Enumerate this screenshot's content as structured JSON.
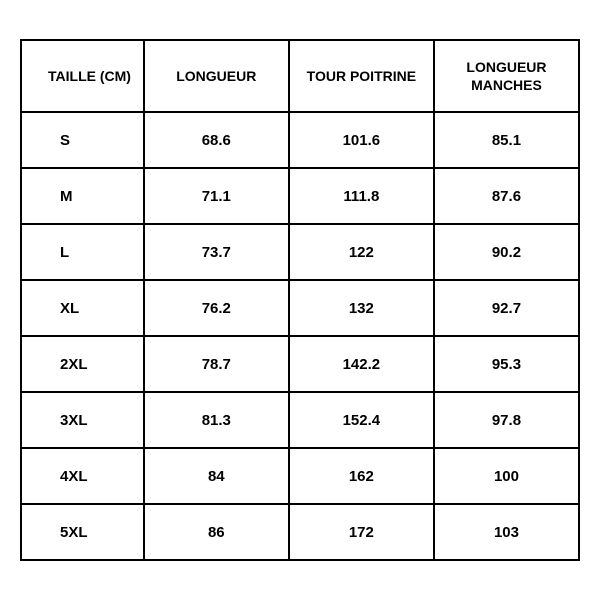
{
  "size_table": {
    "type": "table",
    "background_color": "#ffffff",
    "border_color": "#000000",
    "border_width": 2,
    "text_color": "#000000",
    "header_fontsize": 14,
    "cell_fontsize": 15,
    "font_weight": 700,
    "columns": [
      "TAILLE (CM)",
      "LONGUEUR",
      "TOUR POITRINE",
      "LONGUEUR MANCHES"
    ],
    "column_widths": [
      "22%",
      "26%",
      "26%",
      "26%"
    ],
    "rows": [
      {
        "size": "S",
        "longueur": "68.6",
        "tour_poitrine": "101.6",
        "longueur_manches": "85.1"
      },
      {
        "size": "M",
        "longueur": "71.1",
        "tour_poitrine": "111.8",
        "longueur_manches": "87.6"
      },
      {
        "size": "L",
        "longueur": "73.7",
        "tour_poitrine": "122",
        "longueur_manches": "90.2"
      },
      {
        "size": "XL",
        "longueur": "76.2",
        "tour_poitrine": "132",
        "longueur_manches": "92.7"
      },
      {
        "size": "2XL",
        "longueur": "78.7",
        "tour_poitrine": "142.2",
        "longueur_manches": "95.3"
      },
      {
        "size": "3XL",
        "longueur": "81.3",
        "tour_poitrine": "152.4",
        "longueur_manches": "97.8"
      },
      {
        "size": "4XL",
        "longueur": "84",
        "tour_poitrine": "162",
        "longueur_manches": "100"
      },
      {
        "size": "5XL",
        "longueur": "86",
        "tour_poitrine": "172",
        "longueur_manches": "103"
      }
    ]
  }
}
